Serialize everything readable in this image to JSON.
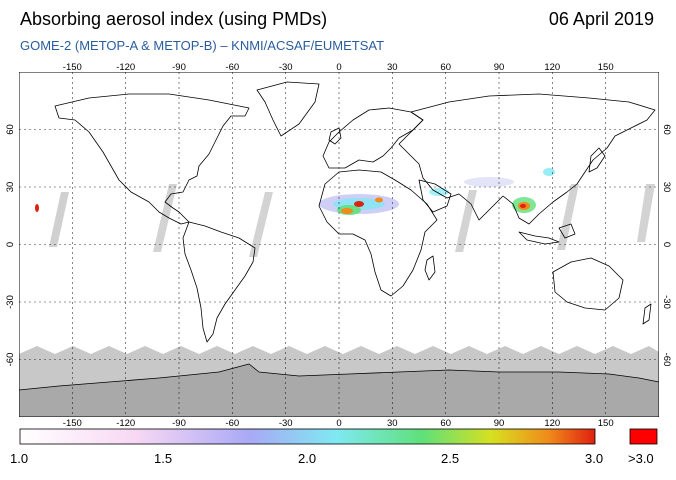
{
  "header": {
    "title": "Absorbing aerosol index (using PMDs)",
    "date": "06 April 2019",
    "subtitle": "GOME-2 (METOP-A & METOP-B)  –  KNMI/ACSAF/EUMETSAT"
  },
  "map": {
    "projection": "equirectangular",
    "lon_range": [
      -180,
      180
    ],
    "lat_range": [
      -90,
      90
    ],
    "lon_ticks": [
      "-150",
      "-120",
      "-90",
      "-60",
      "-30",
      "0",
      "30",
      "60",
      "90",
      "120",
      "150"
    ],
    "lat_ticks": [
      "60",
      "30",
      "0",
      "-30",
      "-60"
    ],
    "grid": true,
    "no_data_color": "#bdbdbd",
    "land_outline_color": "#000000"
  },
  "colorbar": {
    "labels": [
      "1.0",
      "1.5",
      "2.0",
      "2.5",
      "3.0",
      ">3.0"
    ],
    "stops": [
      "#ffffff",
      "#f8d8f4",
      "#a9a9f6",
      "#7fe9f2",
      "#5fe07a",
      "#d7e020",
      "#f08a1a",
      "#e02010"
    ],
    "overflow_color": "#ff0000"
  },
  "colors": {
    "subtitle": "#2a5d9e"
  }
}
